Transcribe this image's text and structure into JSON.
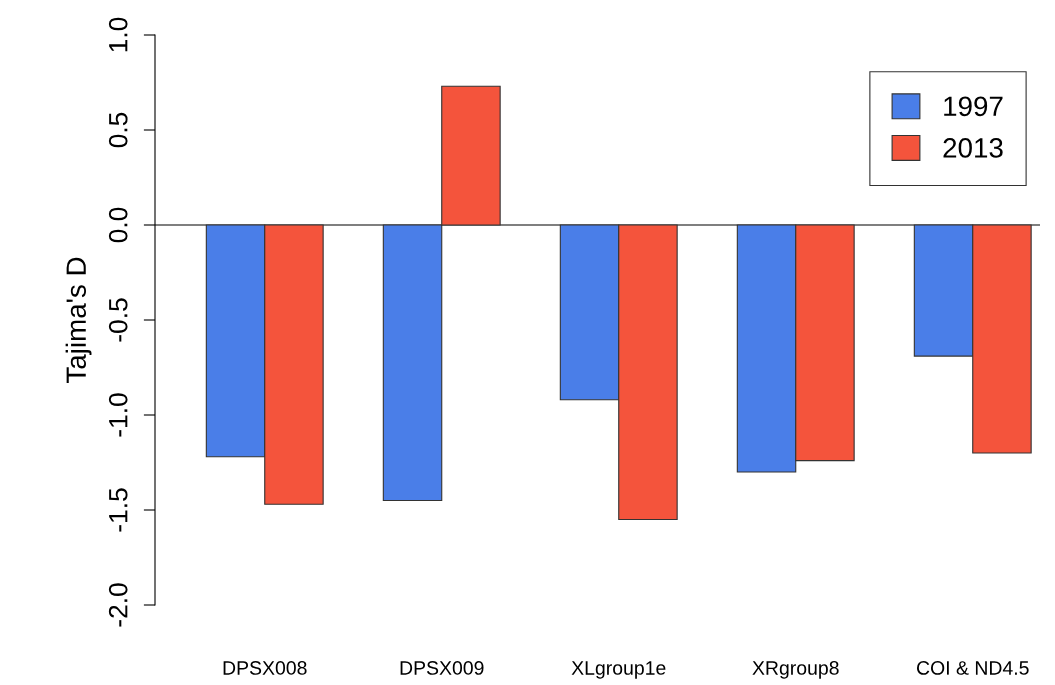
{
  "chart_data": {
    "type": "bar",
    "ylabel": "Tajima's D",
    "categories": [
      "DPSX008",
      "DPSX009",
      "XLgroup1e",
      "XRgroup8",
      "COI & ND4.5"
    ],
    "series": [
      {
        "name": "1997",
        "color": "#4a7ee8",
        "values": [
          -1.22,
          -1.45,
          -0.92,
          -1.3,
          -0.69
        ]
      },
      {
        "name": "2013",
        "color": "#f4543c",
        "values": [
          -1.47,
          0.73,
          -1.55,
          -1.24,
          -1.2
        ]
      }
    ],
    "ylim": [
      -2.0,
      1.0
    ],
    "yticks": [
      {
        "value": -2,
        "label": "-2.0"
      },
      -1.5,
      {
        "value": -1,
        "label": "-1.0"
      },
      -0.5,
      {
        "value": 0,
        "label": "0.0"
      },
      0.5,
      {
        "value": 1,
        "label": "1.0"
      }
    ],
    "ref_lines": [
      {
        "axis": "y",
        "value": 0,
        "color": "#555555"
      }
    ],
    "legend": "top right",
    "grid": false
  }
}
